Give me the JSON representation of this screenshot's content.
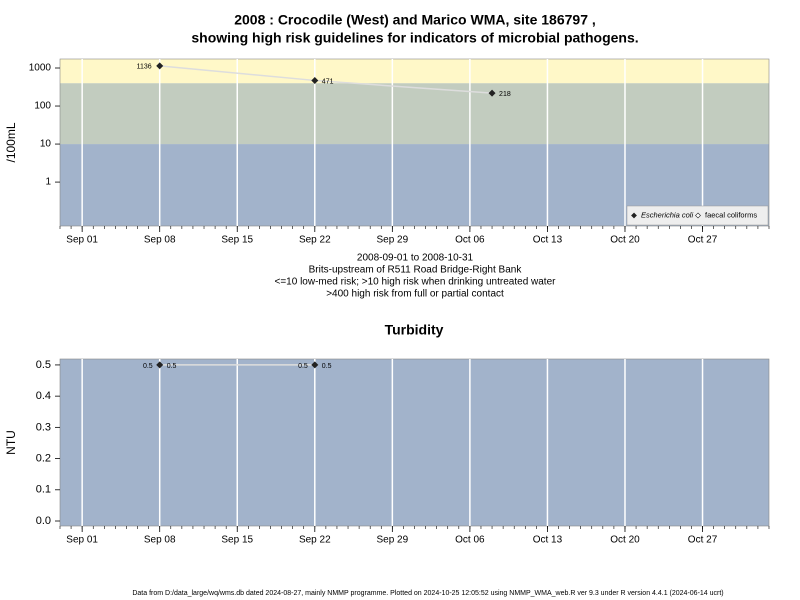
{
  "chart_data": [
    {
      "type": "line",
      "title": "2008 : Crocodile (West) and Marico WMA, site 186797 ,",
      "subtitle": "showing high risk guidelines for indicators of microbial pathogens.",
      "ylabel": "/100mL",
      "log_scale": true,
      "x": [
        "2008-09-08",
        "2008-09-22",
        "2008-10-08"
      ],
      "series": [
        {
          "name": "Escherichia coli",
          "color": "#222222",
          "values": [
            1136,
            471,
            218
          ]
        },
        {
          "name": "faecal coliforms",
          "color": "#222222",
          "values": [
            null,
            null,
            null
          ]
        }
      ],
      "xlim": [
        "2008-08-30",
        "2008-11-02"
      ],
      "xticks": [
        {
          "value": "2008-09-01",
          "label": "Sep 01"
        },
        {
          "value": "2008-09-08",
          "label": "Sep 08"
        },
        {
          "value": "2008-09-15",
          "label": "Sep 15"
        },
        {
          "value": "2008-09-22",
          "label": "Sep 22"
        },
        {
          "value": "2008-09-29",
          "label": "Sep 29"
        },
        {
          "value": "2008-10-06",
          "label": "Oct 06"
        },
        {
          "value": "2008-10-13",
          "label": "Oct 13"
        },
        {
          "value": "2008-10-20",
          "label": "Oct 20"
        },
        {
          "value": "2008-10-27",
          "label": "Oct 27"
        }
      ],
      "ylim": [
        0.07,
        1725
      ],
      "yticks": [
        1,
        10,
        100,
        1000
      ],
      "bands": {
        "limits": [
          10,
          400
        ],
        "colors": [
          "#a2b3cb",
          "#c2ccbf",
          "#fff8c8"
        ]
      },
      "grid": true,
      "legend": "bottom-right",
      "notes": [
        "2008-09-01 to 2008-10-31",
        "Brits-upstream of R511 Road Bridge-Right Bank",
        "<=10 low-med risk; >10 high risk when drinking untreated water",
        ">400 high risk from full or partial contact"
      ]
    },
    {
      "type": "line",
      "title": "Turbidity",
      "ylabel": "NTU",
      "x": [
        "2008-09-08",
        "2008-09-22"
      ],
      "series": [
        {
          "name": "Turbidity",
          "color": "#222222",
          "values": [
            0.5,
            0.5
          ]
        }
      ],
      "xlim": [
        "2008-08-30",
        "2008-11-02"
      ],
      "xticks": [
        {
          "value": "2008-09-01",
          "label": "Sep 01"
        },
        {
          "value": "2008-09-08",
          "label": "Sep 08"
        },
        {
          "value": "2008-09-15",
          "label": "Sep 15"
        },
        {
          "value": "2008-09-22",
          "label": "Sep 22"
        },
        {
          "value": "2008-09-29",
          "label": "Sep 29"
        },
        {
          "value": "2008-10-06",
          "label": "Oct 06"
        },
        {
          "value": "2008-10-13",
          "label": "Oct 13"
        },
        {
          "value": "2008-10-20",
          "label": "Oct 20"
        },
        {
          "value": "2008-10-27",
          "label": "Oct 27"
        }
      ],
      "ylim": [
        -0.016,
        0.519
      ],
      "yticks": [
        {
          "value": 0,
          "label": "0.0"
        },
        0.1,
        0.2,
        0.3,
        0.4,
        0.5
      ],
      "background": "#a2b3cb",
      "grid": true
    }
  ],
  "footer": "Data from D:/data_large/wq/wms.db dated 2024-08-27, mainly NMMP programme. Plotted on 2024-10-25 12:05:52 using NMMP_WMA_web.R ver 9.3 under R version 4.4.1 (2024-06-14 ucrt)"
}
